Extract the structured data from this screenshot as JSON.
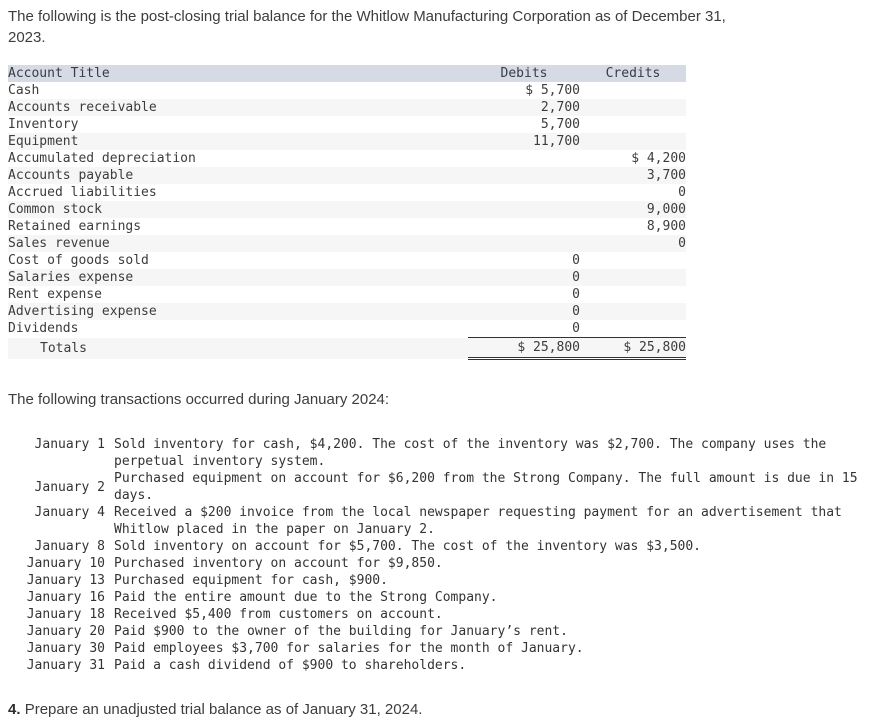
{
  "intro": "The following is the post-closing trial balance for the Whitlow Manufacturing Corporation as of December 31,\n2023.",
  "trial_balance": {
    "headers": [
      "Account Title",
      "Debits",
      "Credits"
    ],
    "rows": [
      {
        "account": "Cash",
        "debit": "$ 5,700",
        "credit": ""
      },
      {
        "account": "Accounts receivable",
        "debit": "2,700",
        "credit": ""
      },
      {
        "account": "Inventory",
        "debit": "5,700",
        "credit": ""
      },
      {
        "account": "Equipment",
        "debit": "11,700",
        "credit": ""
      },
      {
        "account": "Accumulated depreciation",
        "debit": "",
        "credit": "$ 4,200"
      },
      {
        "account": "Accounts payable",
        "debit": "",
        "credit": "3,700"
      },
      {
        "account": "Accrued liabilities",
        "debit": "",
        "credit": "0"
      },
      {
        "account": "Common stock",
        "debit": "",
        "credit": "9,000"
      },
      {
        "account": "Retained earnings",
        "debit": "",
        "credit": "8,900"
      },
      {
        "account": "Sales revenue",
        "debit": "",
        "credit": "0"
      },
      {
        "account": "Cost of goods sold",
        "debit": "0",
        "credit": ""
      },
      {
        "account": "Salaries expense",
        "debit": "0",
        "credit": ""
      },
      {
        "account": "Rent expense",
        "debit": "0",
        "credit": ""
      },
      {
        "account": "Advertising expense",
        "debit": "0",
        "credit": ""
      },
      {
        "account": "Dividends",
        "debit": "0",
        "credit": ""
      }
    ],
    "totals": {
      "label": "Totals",
      "debit": "$ 25,800",
      "credit": "$ 25,800"
    }
  },
  "transactions_heading": "The following transactions occurred during January 2024:",
  "transactions": [
    {
      "date": "January 1",
      "description": "Sold inventory for cash, $4,200. The cost of the inventory was $2,700. The company uses the\nperpetual inventory system."
    },
    {
      "date": "January 2",
      "description": "Purchased equipment on account for $6,200 from the Strong Company. The full amount is due in 15\ndays."
    },
    {
      "date": "January 4",
      "description": "Received a $200 invoice from the local newspaper requesting payment for an advertisement that\nWhitlow placed in the paper on January 2."
    },
    {
      "date": "January 8",
      "description": "Sold inventory on account for $5,700. The cost of the inventory was $3,500."
    },
    {
      "date": "January 10",
      "description": "Purchased inventory on account for $9,850."
    },
    {
      "date": "January 13",
      "description": "Purchased equipment for cash, $900."
    },
    {
      "date": "January 16",
      "description": "Paid the entire amount due to the Strong Company."
    },
    {
      "date": "January 18",
      "description": "Received $5,400 from customers on account."
    },
    {
      "date": "January 20",
      "description": "Paid $900 to the owner of the building for January’s rent."
    },
    {
      "date": "January 30",
      "description": "Paid employees $3,700 for salaries for the month of January."
    },
    {
      "date": "January 31",
      "description": "Paid a cash dividend of $900 to shareholders."
    }
  ],
  "task": {
    "number": "4.",
    "text": "Prepare an unadjusted trial balance as of January 31, 2024."
  },
  "colors": {
    "table_header_bg": "#d6dae4",
    "row_stripe_bg": "#f6f6f7",
    "rule_color": "#323232",
    "text_color": "#3d3d3d"
  }
}
